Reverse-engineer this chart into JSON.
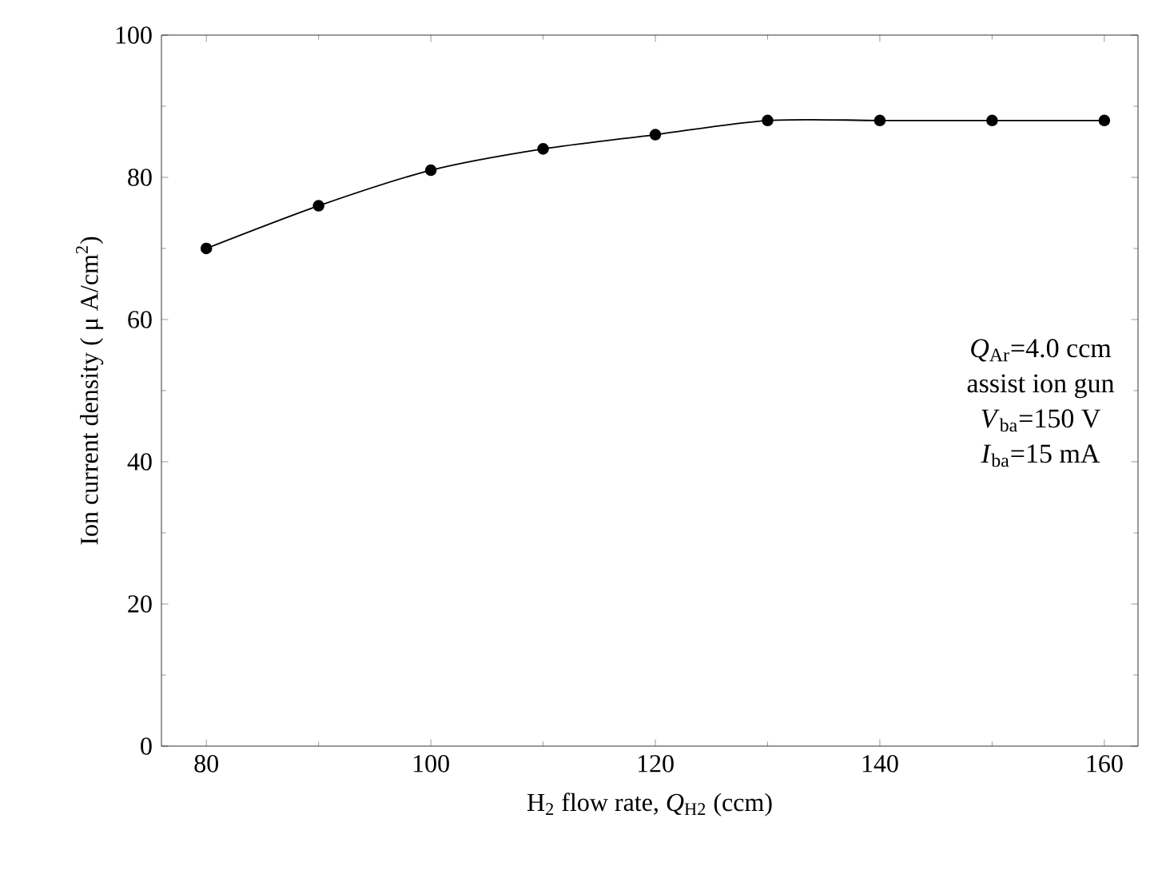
{
  "chart_data": {
    "type": "line",
    "xlabel": "H$_{2}$ flow rate, *Q*$_{H2}$    (ccm)",
    "ylabel": "Ion current density    ( μ A/cm$^{2}$)",
    "x": [
      80,
      90,
      100,
      110,
      120,
      130,
      140,
      150,
      160
    ],
    "series": [
      {
        "color": "#000000",
        "values": [
          70,
          76,
          81,
          84,
          86,
          88,
          88,
          88,
          88
        ]
      }
    ],
    "xlim": [
      76,
      163
    ],
    "ylim": [
      0,
      100
    ],
    "xticks": [
      80,
      100,
      120,
      140,
      160
    ],
    "yticks": [
      0,
      20,
      40,
      60,
      80,
      100
    ],
    "marker": "circle",
    "line_style": "solid",
    "grid": false,
    "annotations": [
      "*Q*$_{Ar}$=4.0 ccm",
      "assist ion gun",
      "*V*$_{ba}$=150 V",
      "*I*$_{ba}$=15 mA"
    ]
  }
}
